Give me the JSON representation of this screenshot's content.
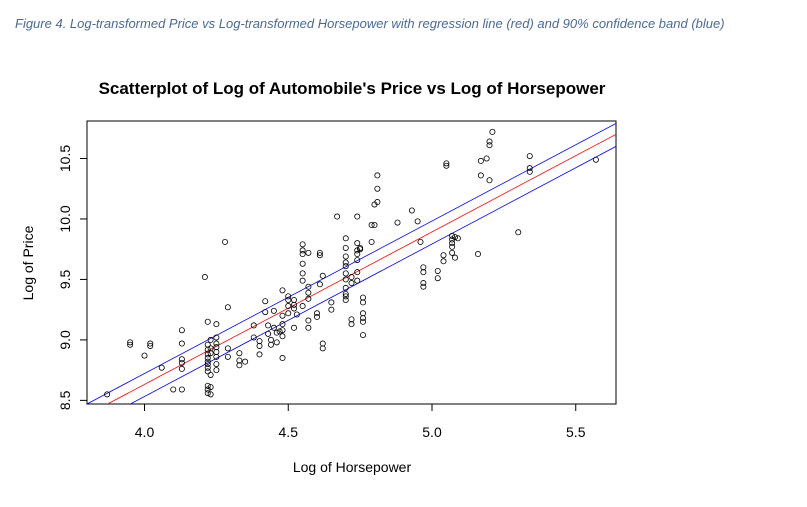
{
  "caption": "Figure 4. Log-transformed Price vs Log-transformed Horsepower with regression line (red) and 90% confidence band (blue)",
  "chart_data": {
    "type": "scatter",
    "title": "Scatterplot of Log of Automobile's Price vs Log of Horsepower",
    "xlabel": "Log of Horsepower",
    "ylabel": "Log of Price",
    "xlim": [
      3.8,
      5.64
    ],
    "ylim": [
      8.47,
      10.81
    ],
    "xticks": [
      4.0,
      4.5,
      5.0,
      5.5
    ],
    "xtick_labels": [
      "4.0",
      "4.5",
      "5.0",
      "5.5"
    ],
    "yticks": [
      8.5,
      9.0,
      9.5,
      10.0,
      10.5
    ],
    "ytick_labels": [
      "8.5",
      "9.0",
      "9.5",
      "10.0",
      "10.5"
    ],
    "grid": false,
    "colors": {
      "points": "#000000",
      "regression": "#ff0000",
      "band": "#0000ff"
    },
    "regression_line": {
      "x": [
        3.8,
        5.64
      ],
      "y": [
        8.38,
        10.7
      ]
    },
    "band_upper": {
      "x": [
        3.8,
        5.64
      ],
      "y": [
        8.47,
        10.79
      ]
    },
    "band_lower": {
      "x": [
        3.8,
        5.64
      ],
      "y": [
        8.28,
        10.6
      ]
    },
    "points": [
      [
        3.87,
        8.55
      ],
      [
        3.95,
        8.98
      ],
      [
        3.95,
        8.96
      ],
      [
        4.0,
        8.87
      ],
      [
        4.02,
        8.97
      ],
      [
        4.02,
        8.95
      ],
      [
        4.06,
        8.77
      ],
      [
        4.1,
        8.59
      ],
      [
        4.13,
        9.08
      ],
      [
        4.13,
        8.97
      ],
      [
        4.13,
        8.84
      ],
      [
        4.13,
        8.81
      ],
      [
        4.13,
        8.76
      ],
      [
        4.13,
        8.59
      ],
      [
        4.21,
        9.52
      ],
      [
        4.22,
        9.15
      ],
      [
        4.22,
        8.96
      ],
      [
        4.22,
        8.92
      ],
      [
        4.22,
        8.88
      ],
      [
        4.22,
        8.85
      ],
      [
        4.22,
        8.82
      ],
      [
        4.22,
        8.8
      ],
      [
        4.22,
        8.77
      ],
      [
        4.22,
        8.74
      ],
      [
        4.22,
        8.62
      ],
      [
        4.22,
        8.59
      ],
      [
        4.22,
        8.56
      ],
      [
        4.23,
        9.0
      ],
      [
        4.23,
        8.93
      ],
      [
        4.23,
        8.89
      ],
      [
        4.23,
        8.71
      ],
      [
        4.23,
        8.61
      ],
      [
        4.23,
        8.55
      ],
      [
        4.25,
        9.13
      ],
      [
        4.25,
        9.02
      ],
      [
        4.25,
        8.97
      ],
      [
        4.25,
        8.94
      ],
      [
        4.25,
        8.9
      ],
      [
        4.25,
        8.86
      ],
      [
        4.25,
        8.8
      ],
      [
        4.25,
        8.75
      ],
      [
        4.28,
        9.81
      ],
      [
        4.29,
        9.27
      ],
      [
        4.29,
        8.93
      ],
      [
        4.29,
        8.86
      ],
      [
        4.33,
        8.89
      ],
      [
        4.33,
        8.83
      ],
      [
        4.33,
        8.79
      ],
      [
        4.35,
        8.82
      ],
      [
        4.38,
        9.12
      ],
      [
        4.38,
        9.02
      ],
      [
        4.4,
        8.99
      ],
      [
        4.4,
        8.95
      ],
      [
        4.4,
        8.88
      ],
      [
        4.42,
        9.32
      ],
      [
        4.42,
        9.23
      ],
      [
        4.43,
        9.12
      ],
      [
        4.43,
        9.05
      ],
      [
        4.44,
        9.0
      ],
      [
        4.44,
        8.96
      ],
      [
        4.45,
        9.24
      ],
      [
        4.45,
        9.1
      ],
      [
        4.46,
        9.06
      ],
      [
        4.46,
        8.98
      ],
      [
        4.47,
        9.07
      ],
      [
        4.48,
        9.41
      ],
      [
        4.48,
        9.2
      ],
      [
        4.48,
        9.13
      ],
      [
        4.48,
        9.08
      ],
      [
        4.48,
        9.03
      ],
      [
        4.48,
        8.85
      ],
      [
        4.5,
        9.36
      ],
      [
        4.5,
        9.33
      ],
      [
        4.5,
        9.28
      ],
      [
        4.5,
        9.22
      ],
      [
        4.52,
        9.33
      ],
      [
        4.52,
        9.29
      ],
      [
        4.52,
        9.26
      ],
      [
        4.52,
        9.1
      ],
      [
        4.53,
        9.21
      ],
      [
        4.55,
        9.79
      ],
      [
        4.55,
        9.74
      ],
      [
        4.55,
        9.71
      ],
      [
        4.55,
        9.63
      ],
      [
        4.55,
        9.55
      ],
      [
        4.55,
        9.49
      ],
      [
        4.55,
        9.28
      ],
      [
        4.57,
        9.72
      ],
      [
        4.57,
        9.44
      ],
      [
        4.57,
        9.39
      ],
      [
        4.57,
        9.34
      ],
      [
        4.57,
        9.16
      ],
      [
        4.57,
        9.1
      ],
      [
        4.6,
        9.22
      ],
      [
        4.6,
        9.19
      ],
      [
        4.61,
        9.72
      ],
      [
        4.61,
        9.7
      ],
      [
        4.61,
        9.46
      ],
      [
        4.62,
        9.53
      ],
      [
        4.62,
        8.97
      ],
      [
        4.62,
        8.93
      ],
      [
        4.65,
        9.31
      ],
      [
        4.65,
        9.25
      ],
      [
        4.67,
        10.02
      ],
      [
        4.7,
        9.84
      ],
      [
        4.7,
        9.76
      ],
      [
        4.7,
        9.69
      ],
      [
        4.7,
        9.64
      ],
      [
        4.7,
        9.61
      ],
      [
        4.7,
        9.55
      ],
      [
        4.7,
        9.5
      ],
      [
        4.7,
        9.43
      ],
      [
        4.7,
        9.38
      ],
      [
        4.7,
        9.36
      ],
      [
        4.7,
        9.33
      ],
      [
        4.72,
        9.52
      ],
      [
        4.72,
        9.47
      ],
      [
        4.72,
        9.17
      ],
      [
        4.72,
        9.13
      ],
      [
        4.74,
        10.02
      ],
      [
        4.74,
        9.8
      ],
      [
        4.74,
        9.74
      ],
      [
        4.74,
        9.71
      ],
      [
        4.74,
        9.66
      ],
      [
        4.74,
        9.56
      ],
      [
        4.74,
        9.49
      ],
      [
        4.75,
        9.76
      ],
      [
        4.75,
        9.75
      ],
      [
        4.76,
        9.35
      ],
      [
        4.76,
        9.31
      ],
      [
        4.76,
        9.22
      ],
      [
        4.76,
        9.18
      ],
      [
        4.76,
        9.15
      ],
      [
        4.76,
        9.04
      ],
      [
        4.79,
        9.95
      ],
      [
        4.79,
        9.81
      ],
      [
        4.8,
        10.12
      ],
      [
        4.8,
        9.95
      ],
      [
        4.81,
        10.36
      ],
      [
        4.81,
        10.25
      ],
      [
        4.81,
        10.14
      ],
      [
        4.88,
        9.97
      ],
      [
        4.93,
        10.07
      ],
      [
        4.95,
        9.98
      ],
      [
        4.96,
        9.81
      ],
      [
        4.97,
        9.6
      ],
      [
        4.97,
        9.56
      ],
      [
        4.97,
        9.47
      ],
      [
        4.97,
        9.44
      ],
      [
        5.02,
        9.57
      ],
      [
        5.02,
        9.51
      ],
      [
        5.04,
        9.7
      ],
      [
        5.04,
        9.65
      ],
      [
        5.05,
        10.46
      ],
      [
        5.05,
        10.44
      ],
      [
        5.07,
        9.86
      ],
      [
        5.07,
        9.83
      ],
      [
        5.07,
        9.8
      ],
      [
        5.07,
        9.77
      ],
      [
        5.07,
        9.72
      ],
      [
        5.08,
        9.85
      ],
      [
        5.08,
        9.68
      ],
      [
        5.09,
        9.84
      ],
      [
        5.16,
        9.71
      ],
      [
        5.17,
        10.48
      ],
      [
        5.17,
        10.36
      ],
      [
        5.19,
        10.5
      ],
      [
        5.2,
        10.64
      ],
      [
        5.2,
        10.61
      ],
      [
        5.2,
        10.32
      ],
      [
        5.21,
        10.72
      ],
      [
        5.3,
        9.89
      ],
      [
        5.34,
        10.52
      ],
      [
        5.34,
        10.42
      ],
      [
        5.34,
        10.39
      ],
      [
        5.57,
        10.49
      ]
    ]
  }
}
